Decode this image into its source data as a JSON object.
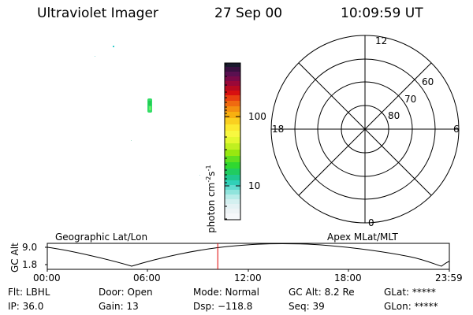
{
  "header": {
    "title": "Ultraviolet Imager",
    "date": "27 Sep 00",
    "time": "10:09:59 UT"
  },
  "colorbar": {
    "axis_label": "photon cm",
    "axis_label_sup1": "-2",
    "axis_label_mid": "s",
    "axis_label_sup2": "-1",
    "ticks": [
      "100",
      "10"
    ]
  },
  "polar_plot": {
    "mlt_labels": {
      "top": "12",
      "left": "18",
      "right": "6",
      "bottom": "0"
    },
    "lat_labels": [
      "60",
      "70",
      "80"
    ]
  },
  "timeline": {
    "left_label": "Geographic Lat/Lon",
    "right_label": "Apex MLat/MLT",
    "y_axis_title": "GC Alt",
    "y_ticks": [
      "9.0",
      "1.8"
    ],
    "x_ticks": [
      "00:00",
      "06:00",
      "12:00",
      "18:00",
      "23:59"
    ],
    "marker_color": "#e00000",
    "current_time_fraction": 0.424
  },
  "info": {
    "row1": {
      "flt": "Flt: LBHL",
      "door": "Door: Open",
      "mode": "Mode: Normal",
      "gc_alt": "GC Alt: 8.2 Re",
      "glat": "GLat: *****"
    },
    "row2": {
      "ip": "IP: 36.0",
      "gain": "Gain: 13",
      "dsp": "Dsp: −118.8",
      "seq": "Seq: 39",
      "glon": "GLon: *****"
    }
  }
}
